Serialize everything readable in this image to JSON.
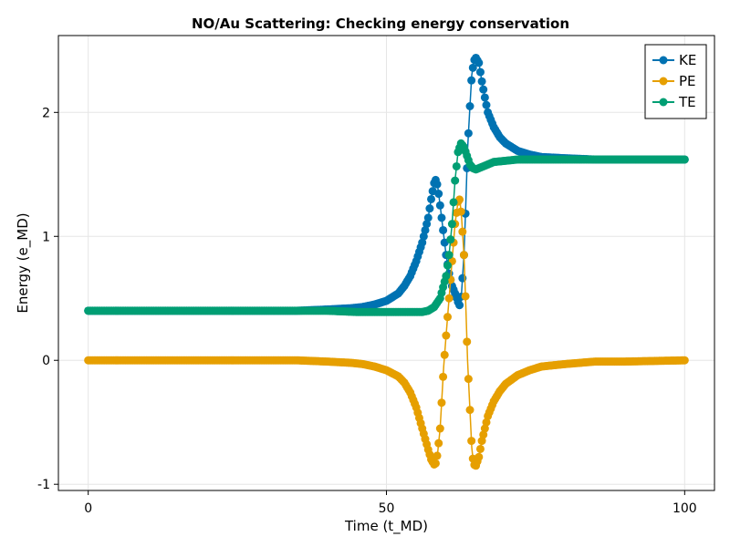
{
  "chart_data": {
    "type": "scatter",
    "title": "NO/Au Scattering: Checking energy conservation",
    "xlabel": "Time (t_MD)",
    "ylabel": "Energy (e_MD)",
    "xlim": [
      -5,
      105
    ],
    "ylim": [
      -1.05,
      2.62
    ],
    "xticks": [
      0,
      50,
      100
    ],
    "yticks": [
      -1,
      0,
      1,
      2
    ],
    "xtick_labels": [
      "0",
      "50",
      "100"
    ],
    "ytick_labels": [
      "-1",
      "0",
      "1",
      "2"
    ],
    "grid": true,
    "legend_position": "top-right",
    "series": [
      {
        "name": "KE",
        "color": "#0072b2",
        "x": [
          0,
          10,
          20,
          30,
          35,
          40,
          44,
          46,
          48,
          50,
          52,
          53,
          54,
          55,
          56,
          57,
          57.5,
          58,
          58.3,
          58.6,
          59,
          59.5,
          60,
          60.5,
          61,
          61.5,
          62,
          62.3,
          62.6,
          63,
          63.3,
          63.6,
          64,
          64.3,
          64.7,
          65,
          65.5,
          66,
          66.5,
          67,
          68,
          69,
          70,
          72,
          74,
          76,
          80,
          85,
          90,
          100
        ],
        "y": [
          0.4,
          0.4,
          0.4,
          0.4,
          0.4,
          0.41,
          0.42,
          0.43,
          0.45,
          0.48,
          0.54,
          0.6,
          0.68,
          0.8,
          0.95,
          1.15,
          1.3,
          1.43,
          1.46,
          1.4,
          1.25,
          1.05,
          0.85,
          0.7,
          0.6,
          0.54,
          0.47,
          0.44,
          0.55,
          0.85,
          1.25,
          1.7,
          2.05,
          2.3,
          2.42,
          2.44,
          2.4,
          2.25,
          2.12,
          2.0,
          1.88,
          1.8,
          1.75,
          1.69,
          1.66,
          1.64,
          1.63,
          1.62,
          1.62,
          1.62
        ]
      },
      {
        "name": "PE",
        "color": "#e69f00",
        "x": [
          0,
          10,
          20,
          30,
          35,
          40,
          44,
          46,
          48,
          50,
          52,
          53,
          54,
          55,
          56,
          57,
          57.5,
          58,
          58.3,
          58.6,
          59,
          59.3,
          59.6,
          60,
          60.5,
          61,
          61.5,
          62,
          62.3,
          62.6,
          63,
          63.3,
          63.6,
          64,
          64.3,
          64.6,
          65,
          65.5,
          66,
          67,
          68,
          69,
          70,
          72,
          74,
          76,
          80,
          85,
          90,
          100
        ],
        "y": [
          0,
          0,
          0,
          0,
          0,
          -0.01,
          -0.02,
          -0.03,
          -0.05,
          -0.08,
          -0.13,
          -0.18,
          -0.26,
          -0.38,
          -0.55,
          -0.72,
          -0.8,
          -0.84,
          -0.83,
          -0.74,
          -0.55,
          -0.3,
          -0.05,
          0.2,
          0.5,
          0.8,
          1.1,
          1.28,
          1.3,
          1.15,
          0.85,
          0.45,
          0.0,
          -0.4,
          -0.7,
          -0.84,
          -0.85,
          -0.78,
          -0.65,
          -0.45,
          -0.33,
          -0.25,
          -0.19,
          -0.12,
          -0.08,
          -0.05,
          -0.03,
          -0.01,
          -0.01,
          0
        ]
      },
      {
        "name": "TE",
        "color": "#009e73",
        "x": [
          0,
          10,
          20,
          30,
          40,
          45,
          50,
          52,
          54,
          55,
          56,
          57,
          58,
          59,
          60,
          60.5,
          61,
          61.5,
          62,
          62.5,
          63,
          63.5,
          64,
          64.5,
          65,
          65.5,
          66,
          67,
          68,
          70,
          72,
          74,
          76,
          80,
          85,
          90,
          100
        ],
        "y": [
          0.4,
          0.4,
          0.4,
          0.4,
          0.4,
          0.39,
          0.39,
          0.39,
          0.39,
          0.39,
          0.39,
          0.4,
          0.43,
          0.5,
          0.68,
          0.85,
          1.1,
          1.45,
          1.68,
          1.75,
          1.72,
          1.65,
          1.58,
          1.55,
          1.54,
          1.55,
          1.56,
          1.58,
          1.6,
          1.61,
          1.62,
          1.62,
          1.62,
          1.62,
          1.62,
          1.62,
          1.62
        ]
      }
    ]
  }
}
